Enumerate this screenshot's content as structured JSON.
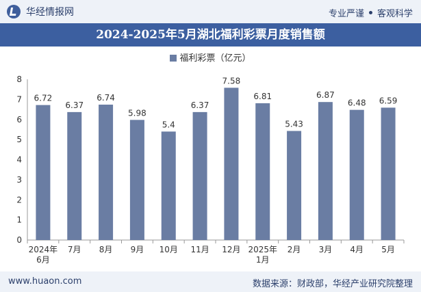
{
  "header": {
    "brand": "华经情报网",
    "tag_left": "专业严谨",
    "tag_right": "客观科学"
  },
  "chart_data": {
    "type": "bar",
    "title": "2024-2025年5月湖北福利彩票月度销售额",
    "series": [
      {
        "name": "福利彩票（亿元）",
        "color": "#6a7da3",
        "values": [
          6.72,
          6.37,
          6.74,
          5.98,
          5.4,
          6.37,
          7.58,
          6.81,
          5.43,
          6.87,
          6.48,
          6.59
        ]
      }
    ],
    "categories": [
      [
        "2024年",
        "6月"
      ],
      [
        "7月"
      ],
      [
        "8月"
      ],
      [
        "9月"
      ],
      [
        "10月"
      ],
      [
        "11月"
      ],
      [
        "12月"
      ],
      [
        "2025年",
        "1月"
      ],
      [
        "2月"
      ],
      [
        "3月"
      ],
      [
        "4月"
      ],
      [
        "5月"
      ]
    ],
    "ylim": [
      0,
      8
    ],
    "yticks": [
      0,
      1,
      2,
      3,
      4,
      5,
      6,
      7,
      8
    ],
    "legend_position": "top-center",
    "grid": false
  },
  "footer": {
    "url": "www.huaon.com",
    "source": "数据来源：财政部，华经产业研究院整理"
  }
}
